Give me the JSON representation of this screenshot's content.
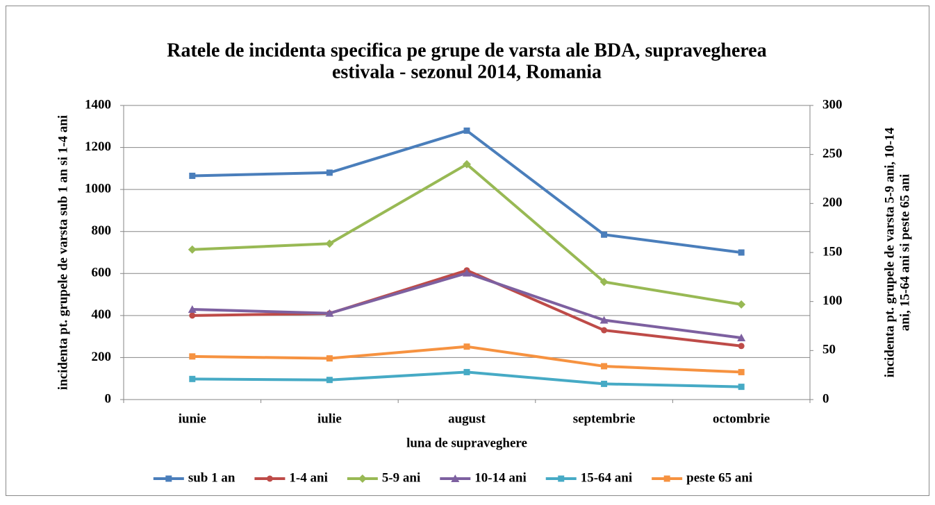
{
  "chart_data": {
    "type": "line",
    "title": [
      "Ratele de incidenta specifica pe grupe de varsta ale BDA, supravegherea",
      "estivala - sezonul 2014, Romania"
    ],
    "x_label": "luna de supraveghere",
    "y_label": "incidenta pt. grupele de varsta sub 1 an si 1-4 ani",
    "y2_label": [
      "incidenta pt. grupele de varsta 5-9 ani, 10-14",
      "ani, 15-64 ani si peste 65 ani"
    ],
    "categories": [
      "iunie",
      "iulie",
      "august",
      "septembrie",
      "octombrie"
    ],
    "ylim": [
      0,
      1400
    ],
    "yticks": [
      0,
      200,
      400,
      600,
      800,
      1000,
      1200,
      1400
    ],
    "y2lim": [
      0,
      300
    ],
    "y2ticks": [
      0,
      50,
      100,
      150,
      200,
      250,
      300
    ],
    "grid": true,
    "legend": "bottom",
    "series": [
      {
        "name": "sub 1 an",
        "color": "#4A7EBB",
        "marker": "square",
        "values": [
          1065,
          1080,
          1280,
          785,
          700
        ]
      },
      {
        "name": "1-4 ani",
        "color": "#BE4B48",
        "marker": "circle",
        "values": [
          400,
          410,
          615,
          330,
          255
        ]
      },
      {
        "name": "5-9 ani",
        "color": "#98B954",
        "marker": "diamond",
        "axis": "y2",
        "values": [
          153,
          159,
          240,
          120,
          97
        ]
      },
      {
        "name": "10-14 ani",
        "color": "#7D60A0",
        "marker": "triangle",
        "axis": "y2",
        "values": [
          92,
          88,
          129,
          81,
          63
        ]
      },
      {
        "name": "15-64 ani",
        "color": "#46AAC5",
        "marker": "square",
        "axis": "y2",
        "values": [
          21,
          20,
          28,
          16,
          13
        ]
      },
      {
        "name": "peste 65 ani",
        "color": "#F69240",
        "marker": "square",
        "axis": "y2",
        "values": [
          44,
          42,
          54,
          34,
          28
        ]
      }
    ]
  }
}
